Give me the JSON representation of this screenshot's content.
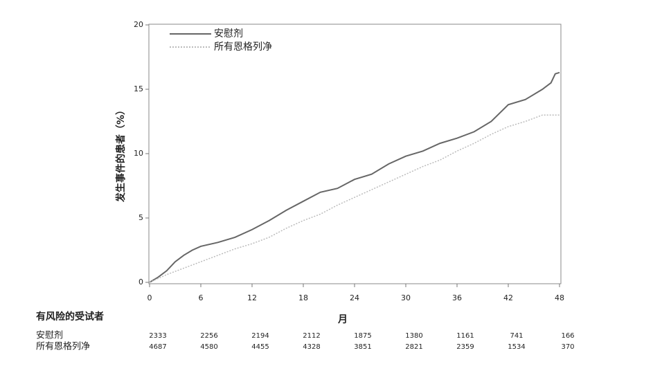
{
  "chart_data": {
    "type": "line",
    "ylabel": "发生事件的患者（%）",
    "xlabel": "月",
    "xlim": [
      0,
      48
    ],
    "xticks": [
      0,
      6,
      12,
      18,
      24,
      30,
      36,
      42,
      48
    ],
    "ylim": [
      0,
      20
    ],
    "yticks": [
      0,
      5,
      10,
      15,
      20
    ],
    "legend": "upper left",
    "series": [
      {
        "name": "安慰剂",
        "color": "#666666",
        "style": "solid",
        "x": [
          0,
          1,
          2,
          3,
          4,
          5,
          6,
          8,
          10,
          12,
          14,
          16,
          18,
          20,
          22,
          24,
          26,
          28,
          30,
          32,
          34,
          36,
          38,
          40,
          42,
          44,
          46,
          47,
          47.5,
          48
        ],
        "values": [
          0,
          0.4,
          0.9,
          1.6,
          2.1,
          2.5,
          2.8,
          3.1,
          3.5,
          4.1,
          4.8,
          5.6,
          6.3,
          7.0,
          7.3,
          8.0,
          8.4,
          9.2,
          9.8,
          10.2,
          10.8,
          11.2,
          11.7,
          12.5,
          13.8,
          14.2,
          15.0,
          15.5,
          16.2,
          16.3
        ]
      },
      {
        "name": "所有恩格列净",
        "color": "#bbbbbb",
        "style": "dotted",
        "x": [
          0,
          2,
          4,
          6,
          8,
          10,
          12,
          14,
          16,
          18,
          20,
          22,
          24,
          26,
          28,
          30,
          32,
          34,
          36,
          38,
          40,
          42,
          44,
          46,
          48
        ],
        "values": [
          0,
          0.6,
          1.1,
          1.6,
          2.1,
          2.6,
          3.0,
          3.5,
          4.2,
          4.8,
          5.3,
          6.0,
          6.6,
          7.2,
          7.8,
          8.4,
          9.0,
          9.5,
          10.2,
          10.8,
          11.5,
          12.1,
          12.5,
          13.0,
          13.0
        ]
      }
    ],
    "at_risk": {
      "title": "有风险的受试者",
      "rows": [
        {
          "name": "安慰剂",
          "values": [
            2333,
            2256,
            2194,
            2112,
            1875,
            1380,
            1161,
            741,
            166
          ]
        },
        {
          "name": "所有恩格列净",
          "values": [
            4687,
            4580,
            4455,
            4328,
            3851,
            2821,
            2359,
            1534,
            370
          ]
        }
      ]
    }
  }
}
